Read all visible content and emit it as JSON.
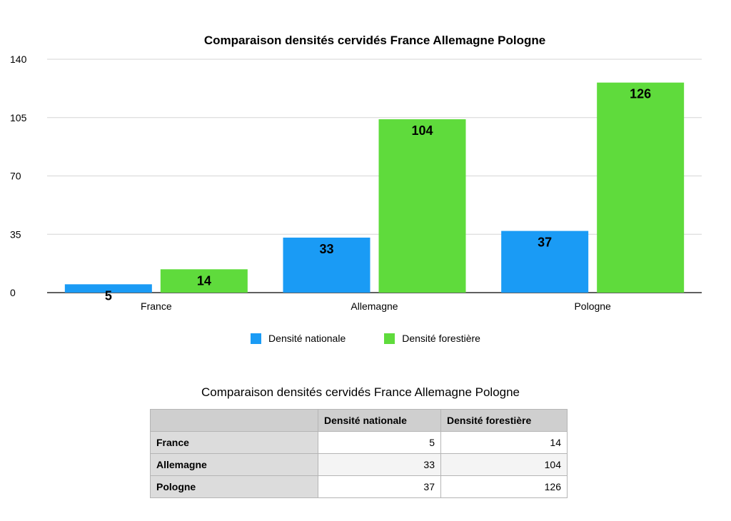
{
  "chart_data": {
    "type": "bar",
    "title": "Comparaison densités cervidés France Allemagne Pologne",
    "categories": [
      "France",
      "Allemagne",
      "Pologne"
    ],
    "series": [
      {
        "name": "Densité nationale",
        "values": [
          5,
          33,
          37
        ],
        "color": "#1a9bf5"
      },
      {
        "name": "Densité forestière",
        "values": [
          14,
          104,
          126
        ],
        "color": "#5fdb3c"
      }
    ],
    "ylim": [
      0,
      140
    ],
    "yticks": [
      0,
      35,
      70,
      105,
      140
    ],
    "grid": true,
    "legend_position": "bottom"
  },
  "table": {
    "title": "Comparaison densités cervidés France Allemagne Pologne",
    "header": [
      "",
      "Densité nationale",
      "Densité forestière"
    ],
    "rows": [
      {
        "label": "France",
        "values": [
          "5",
          "14"
        ]
      },
      {
        "label": "Allemagne",
        "values": [
          "33",
          "104"
        ]
      },
      {
        "label": "Pologne",
        "values": [
          "37",
          "126"
        ]
      }
    ]
  }
}
